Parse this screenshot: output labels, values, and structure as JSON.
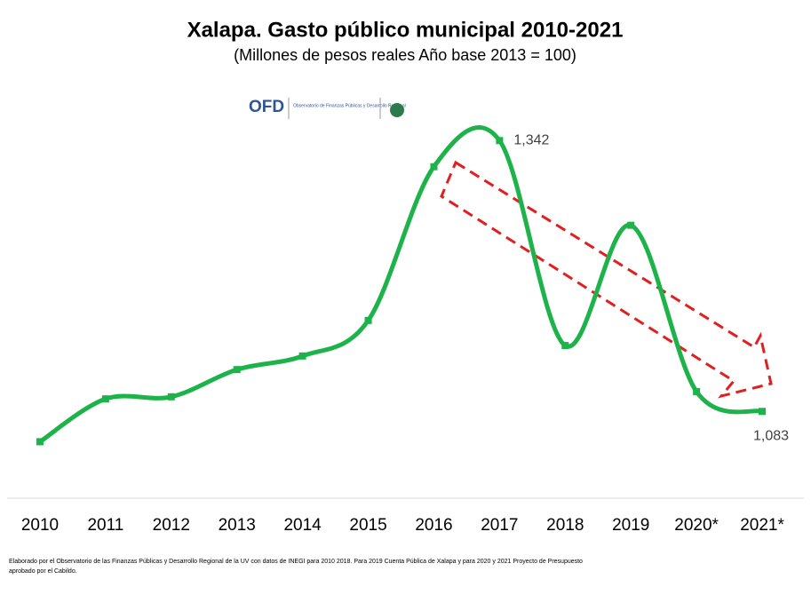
{
  "chart_data": {
    "type": "line",
    "title": "Xalapa. Gasto público municipal 2010-2021",
    "subtitle": "(Millones de pesos reales Año base 2013 = 100)",
    "logo": "OFD",
    "logo_caption": "Observatorio de Finanzas Públicas y Desarrollo Regional",
    "categories": [
      "2010",
      "2011",
      "2012",
      "2013",
      "2014",
      "2015",
      "2016",
      "2017",
      "2018",
      "2019",
      "2020*",
      "2021*"
    ],
    "series": [
      {
        "name": "Gasto público municipal",
        "color": "#1db34a",
        "values": [
          1054,
          1095,
          1097,
          1123,
          1136,
          1170,
          1317,
          1342,
          1146,
          1261,
          1102,
          1083
        ],
        "value_labels": [
          null,
          null,
          null,
          null,
          null,
          null,
          null,
          "1,342",
          null,
          null,
          null,
          "1,083"
        ]
      }
    ],
    "ylim": [
      1000,
      1400
    ],
    "footnote": "Elaborado por el Observatorio de las Finanzas Públicas y Desarrollo Regional de la UV con datos de INEGI para 2010 2018. Para 2019 Cuenta Pública de Xalapa y para 2020 y 2021 Proyecto de Presupuesto aprobado por el Cabildo."
  }
}
